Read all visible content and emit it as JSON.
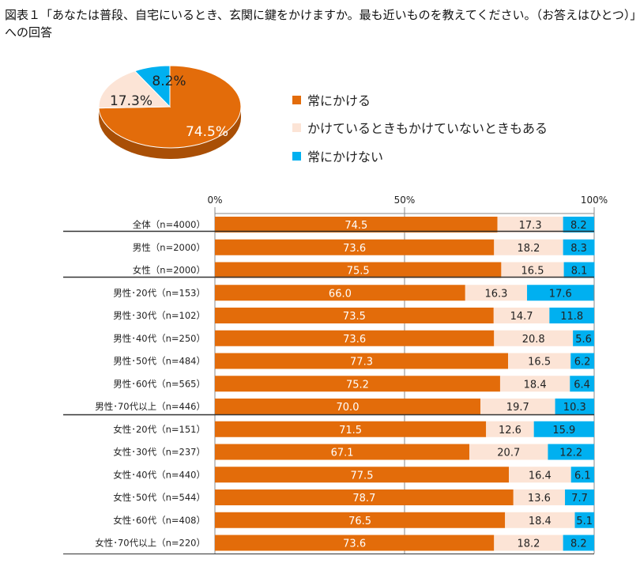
{
  "title": "図表１「あなたは普段、自宅にいるとき、玄関に鍵をかけますか。最も近いものを教えてください。（お答えはひとつ）」への回答",
  "colors": {
    "always": "#E36C0A",
    "sometimes": "#FCE4D6",
    "never": "#00B0F0"
  },
  "chart_data": [
    {
      "type": "pie",
      "slices": [
        {
          "name": "常にかける",
          "value": 74.5,
          "label": "74.5%"
        },
        {
          "name": "かけているときもかけていないときもある",
          "value": 17.3,
          "label": "17.3%"
        },
        {
          "name": "常にかけない",
          "value": 8.2,
          "label": "8.2%"
        }
      ],
      "legend": "right"
    },
    {
      "type": "bar",
      "orientation": "horizontal",
      "stacked": true,
      "xlim": [
        0,
        100
      ],
      "ticks": [
        "0%",
        "50%",
        "100%"
      ],
      "grid": true,
      "categories": [
        "全体（n=4000）",
        "男性（n=2000）",
        "女性（n=2000）",
        "男性･20代（n=153）",
        "男性･30代（n=102）",
        "男性･40代（n=250）",
        "男性･50代（n=484）",
        "男性･60代（n=565）",
        "男性･70代以上（n=446）",
        "女性･20代（n=151）",
        "女性･30代（n=237）",
        "女性･40代（n=440）",
        "女性･50代（n=544）",
        "女性･60代（n=408）",
        "女性･70代以上（n=220）"
      ],
      "series": [
        {
          "name": "常にかける",
          "values": [
            74.5,
            73.6,
            75.5,
            66.0,
            73.5,
            73.6,
            77.3,
            75.2,
            70.0,
            71.5,
            67.1,
            77.5,
            78.7,
            76.5,
            73.6
          ]
        },
        {
          "name": "かけているときもかけていないときもある",
          "values": [
            17.3,
            18.2,
            16.5,
            16.3,
            14.7,
            20.8,
            16.5,
            18.4,
            19.7,
            12.6,
            20.7,
            16.4,
            13.6,
            18.4,
            18.2
          ]
        },
        {
          "name": "常にかけない",
          "values": [
            8.2,
            8.3,
            8.1,
            17.6,
            11.8,
            5.6,
            6.2,
            6.4,
            10.3,
            15.9,
            12.2,
            6.1,
            7.7,
            5.1,
            8.2
          ]
        }
      ]
    }
  ]
}
